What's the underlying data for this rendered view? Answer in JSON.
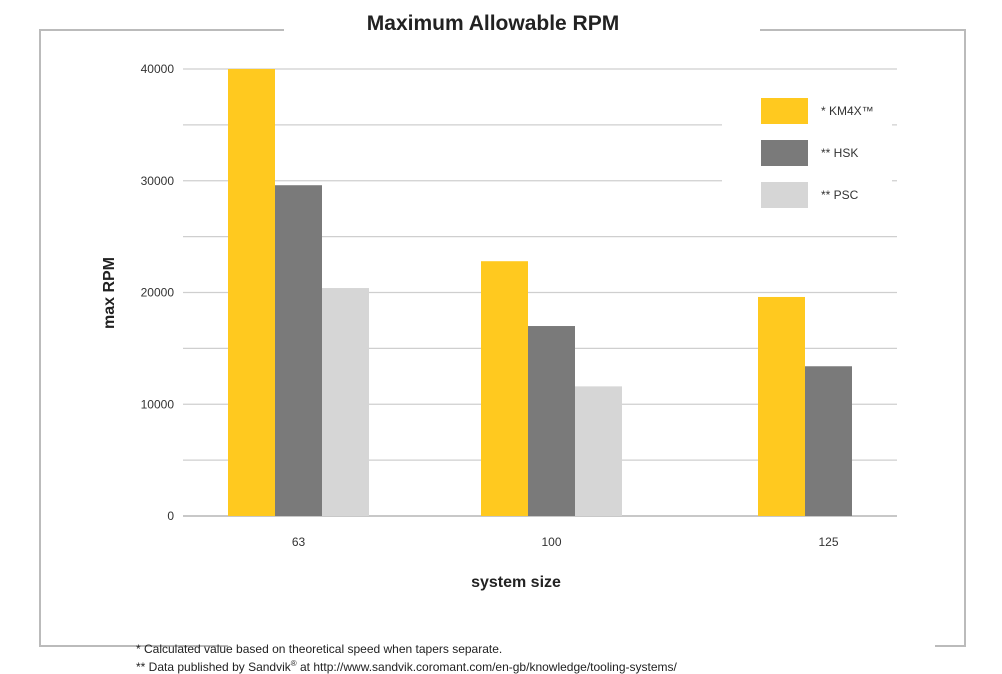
{
  "chart_data": {
    "type": "bar",
    "title": "Maximum Allowable RPM",
    "xlabel": "system size",
    "ylabel": "max RPM",
    "categories": [
      "63",
      "100",
      "125"
    ],
    "ylim": [
      0,
      40000
    ],
    "yticks": [
      0,
      10000,
      20000,
      30000,
      40000
    ],
    "yticks_labels": [
      "0",
      "10000",
      "20000",
      "30000",
      "40000"
    ],
    "grid": true,
    "legend_position": "top-right",
    "series": [
      {
        "name": "* KM4X™",
        "color": "#FFC91F",
        "values": [
          40000,
          22800,
          19600
        ]
      },
      {
        "name": "** HSK",
        "color": "#7A7A7A",
        "values": [
          29600,
          17000,
          13400
        ]
      },
      {
        "name": "** PSC",
        "color": "#D6D6D6",
        "values": [
          20400,
          11600,
          null
        ]
      }
    ]
  },
  "footnotes": {
    "note1": "*  Calculated value based on theoretical speed when tapers separate.",
    "note2_prefix": "** Data published by Sandvik",
    "note2_mark": "®",
    "note2_suffix": " at http://www.sandvik.coromant.com/en-gb/knowledge/tooling-systems/"
  }
}
